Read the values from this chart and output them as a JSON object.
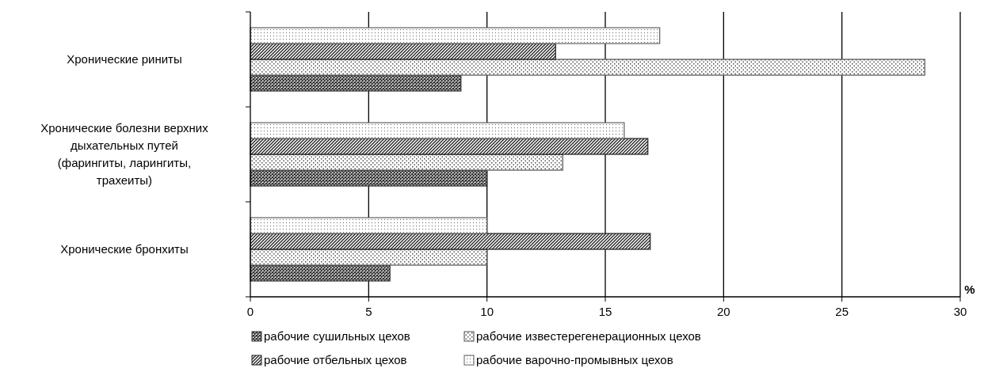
{
  "chart_data": {
    "type": "bar",
    "orientation": "horizontal",
    "categories": [
      "Хронические риниты",
      "Хронические болезни верхних\nдыхательных путей\n(фарингиты, ларингиты,\nтрахеиты)",
      "Хронические бронхиты"
    ],
    "series": [
      {
        "name": "рабочие сушильных цехов",
        "color": "#303030",
        "values": [
          8.9,
          10.0,
          5.9
        ]
      },
      {
        "name": "рабочие известерегенерационных цехов",
        "color": "#505050",
        "values": [
          28.5,
          13.2,
          10.0
        ]
      },
      {
        "name": "рабочие отбельных цехов",
        "color": "#202020",
        "values": [
          12.9,
          16.8,
          16.9
        ]
      },
      {
        "name": "рабочие варочно-промывных цехов",
        "color": "#606060",
        "values": [
          17.3,
          15.8,
          10.0
        ]
      }
    ],
    "xlabel": "%",
    "xlim": [
      0,
      30
    ],
    "xticks": [
      0,
      5,
      10,
      15,
      20,
      25,
      30
    ],
    "grid": "x",
    "legend": "bottom"
  }
}
